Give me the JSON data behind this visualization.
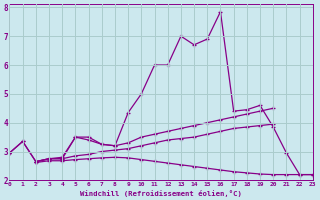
{
  "xlabel": "Windchill (Refroidissement éolien,°C)",
  "bg_color": "#cce8ee",
  "grid_color": "#aacccc",
  "line_color": "#880088",
  "xlim": [
    0,
    23
  ],
  "ylim": [
    2,
    8.1
  ],
  "xticks": [
    0,
    1,
    2,
    3,
    4,
    5,
    6,
    7,
    8,
    9,
    10,
    11,
    12,
    13,
    14,
    15,
    16,
    17,
    18,
    19,
    20,
    21,
    22,
    23
  ],
  "yticks": [
    2,
    3,
    4,
    5,
    6,
    7,
    8
  ],
  "series": {
    "main": [
      2.95,
      3.35,
      2.65,
      2.75,
      2.75,
      3.5,
      3.5,
      3.25,
      3.2,
      4.35,
      5.0,
      6.0,
      6.0,
      7.0,
      6.7,
      6.9,
      7.85,
      4.4,
      4.45,
      4.6,
      3.85,
      2.95,
      2.2,
      2.2
    ],
    "upper": [
      2.95,
      3.35,
      2.65,
      2.75,
      2.8,
      3.5,
      3.4,
      3.25,
      3.2,
      3.3,
      3.5,
      3.6,
      3.7,
      3.8,
      3.9,
      4.0,
      4.1,
      4.2,
      4.3,
      4.4,
      4.5,
      null,
      null,
      null
    ],
    "middle": [
      2.95,
      null,
      2.65,
      2.75,
      2.75,
      2.85,
      2.9,
      3.0,
      3.05,
      3.1,
      3.2,
      3.3,
      3.4,
      3.45,
      3.5,
      3.6,
      3.7,
      3.8,
      3.85,
      3.9,
      3.95,
      null,
      null,
      null
    ],
    "lower": [
      2.95,
      null,
      2.62,
      2.68,
      2.68,
      2.72,
      2.75,
      2.78,
      2.8,
      2.78,
      2.72,
      2.66,
      2.6,
      2.54,
      2.48,
      2.42,
      2.36,
      2.3,
      2.26,
      2.22,
      2.2,
      2.2,
      2.2,
      2.2
    ]
  }
}
